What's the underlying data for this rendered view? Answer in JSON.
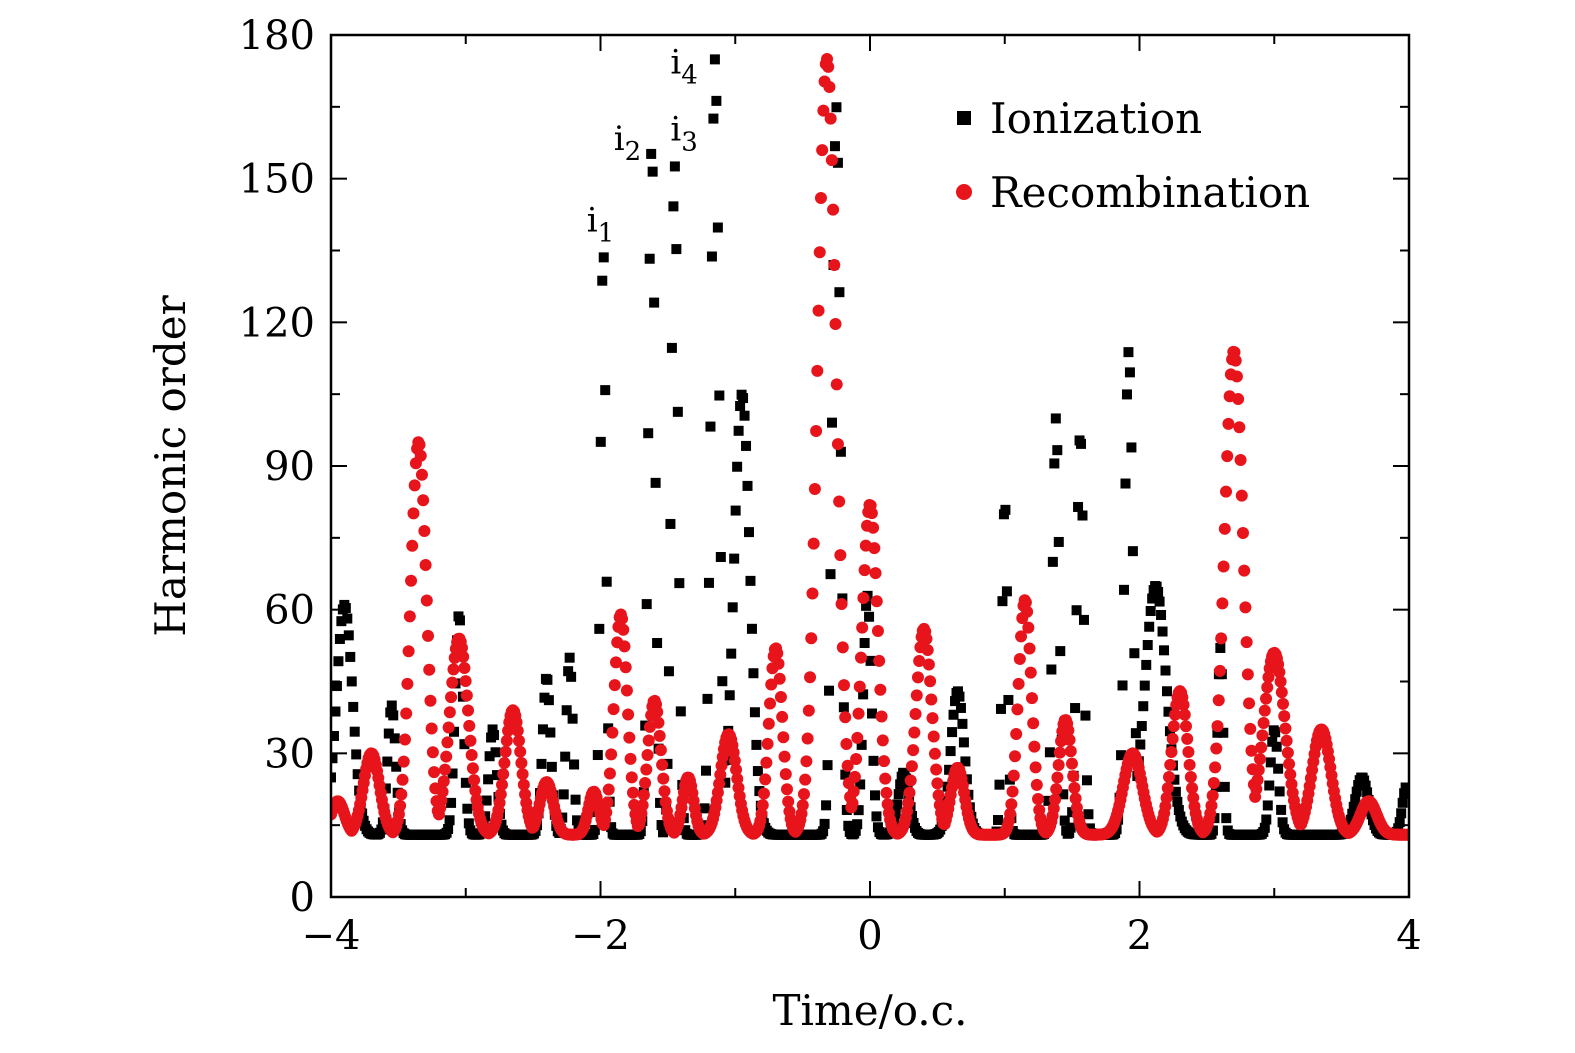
{
  "chart_data": {
    "type": "scatter",
    "title": "",
    "xlabel": "Time/o.c.",
    "ylabel": "Harmonic order",
    "xlim": [
      -4,
      4
    ],
    "ylim": [
      0,
      180
    ],
    "xticks": [
      -4,
      -2,
      0,
      2,
      4
    ],
    "xtick_labels": [
      "−4",
      "−2",
      "0",
      "2",
      "4"
    ],
    "yticks": [
      0,
      30,
      60,
      90,
      120,
      150,
      180
    ],
    "ytick_labels": [
      "0",
      "30",
      "60",
      "90",
      "120",
      "150",
      "180"
    ],
    "grid": false,
    "legend_position": "top-right",
    "series": [
      {
        "name": "Ionization",
        "marker": "square",
        "color": "#000000",
        "peaks": [
          {
            "x": -3.9,
            "y": 61,
            "w": 0.06
          },
          {
            "x": -3.55,
            "y": 40,
            "w": 0.03
          },
          {
            "x": -3.05,
            "y": 59,
            "w": 0.03
          },
          {
            "x": -2.8,
            "y": 35,
            "w": 0.03
          },
          {
            "x": -2.4,
            "y": 46,
            "w": 0.03
          },
          {
            "x": -2.23,
            "y": 50,
            "w": 0.025
          },
          {
            "x": -1.98,
            "y": 136,
            "w": 0.02
          },
          {
            "x": -1.62,
            "y": 157,
            "w": 0.025
          },
          {
            "x": -1.45,
            "y": 153,
            "w": 0.025
          },
          {
            "x": -1.15,
            "y": 175,
            "w": 0.03
          },
          {
            "x": -0.95,
            "y": 105,
            "w": 0.06
          },
          {
            "x": -0.25,
            "y": 165,
            "w": 0.03
          },
          {
            "x": -0.02,
            "y": 63,
            "w": 0.03
          },
          {
            "x": 0.25,
            "y": 26,
            "w": 0.04
          },
          {
            "x": 0.65,
            "y": 43,
            "w": 0.05
          },
          {
            "x": 1.0,
            "y": 83,
            "w": 0.02
          },
          {
            "x": 1.38,
            "y": 100,
            "w": 0.025
          },
          {
            "x": 1.56,
            "y": 97,
            "w": 0.025
          },
          {
            "x": 1.92,
            "y": 114,
            "w": 0.03
          },
          {
            "x": 2.12,
            "y": 65,
            "w": 0.08
          },
          {
            "x": 2.6,
            "y": 52,
            "w": 0.02
          },
          {
            "x": 3.0,
            "y": 35,
            "w": 0.03
          },
          {
            "x": 3.65,
            "y": 25,
            "w": 0.05
          },
          {
            "x": 3.98,
            "y": 23,
            "w": 0.03
          }
        ]
      },
      {
        "name": "Recombination",
        "marker": "circle",
        "color": "#e8141b",
        "peaks": [
          {
            "x": -3.95,
            "y": 20,
            "w": 0.05
          },
          {
            "x": -3.7,
            "y": 30,
            "w": 0.06
          },
          {
            "x": -3.35,
            "y": 95,
            "w": 0.06
          },
          {
            "x": -3.05,
            "y": 54,
            "w": 0.07
          },
          {
            "x": -2.65,
            "y": 39,
            "w": 0.06
          },
          {
            "x": -2.4,
            "y": 24,
            "w": 0.05
          },
          {
            "x": -2.05,
            "y": 22,
            "w": 0.04
          },
          {
            "x": -1.85,
            "y": 59,
            "w": 0.05
          },
          {
            "x": -1.6,
            "y": 41,
            "w": 0.05
          },
          {
            "x": -1.35,
            "y": 25,
            "w": 0.04
          },
          {
            "x": -1.05,
            "y": 34,
            "w": 0.06
          },
          {
            "x": -0.7,
            "y": 52,
            "w": 0.05
          },
          {
            "x": -0.32,
            "y": 175,
            "w": 0.07
          },
          {
            "x": 0.0,
            "y": 82,
            "w": 0.06
          },
          {
            "x": 0.4,
            "y": 56,
            "w": 0.06
          },
          {
            "x": 0.65,
            "y": 27,
            "w": 0.05
          },
          {
            "x": 1.15,
            "y": 62,
            "w": 0.05
          },
          {
            "x": 1.45,
            "y": 37,
            "w": 0.05
          },
          {
            "x": 1.95,
            "y": 30,
            "w": 0.07
          },
          {
            "x": 2.3,
            "y": 43,
            "w": 0.06
          },
          {
            "x": 2.7,
            "y": 114,
            "w": 0.07
          },
          {
            "x": 3.0,
            "y": 51,
            "w": 0.08
          },
          {
            "x": 3.35,
            "y": 35,
            "w": 0.07
          },
          {
            "x": 3.7,
            "y": 20,
            "w": 0.06
          }
        ]
      }
    ],
    "baseline": 13,
    "annotations": [
      {
        "base": "i",
        "sub": "1",
        "x": -2.0,
        "y": 139
      },
      {
        "base": "i",
        "sub": "2",
        "x": -1.8,
        "y": 156
      },
      {
        "base": "i",
        "sub": "3",
        "x": -1.38,
        "y": 158
      },
      {
        "base": "i",
        "sub": "4",
        "x": -1.38,
        "y": 172
      }
    ]
  }
}
